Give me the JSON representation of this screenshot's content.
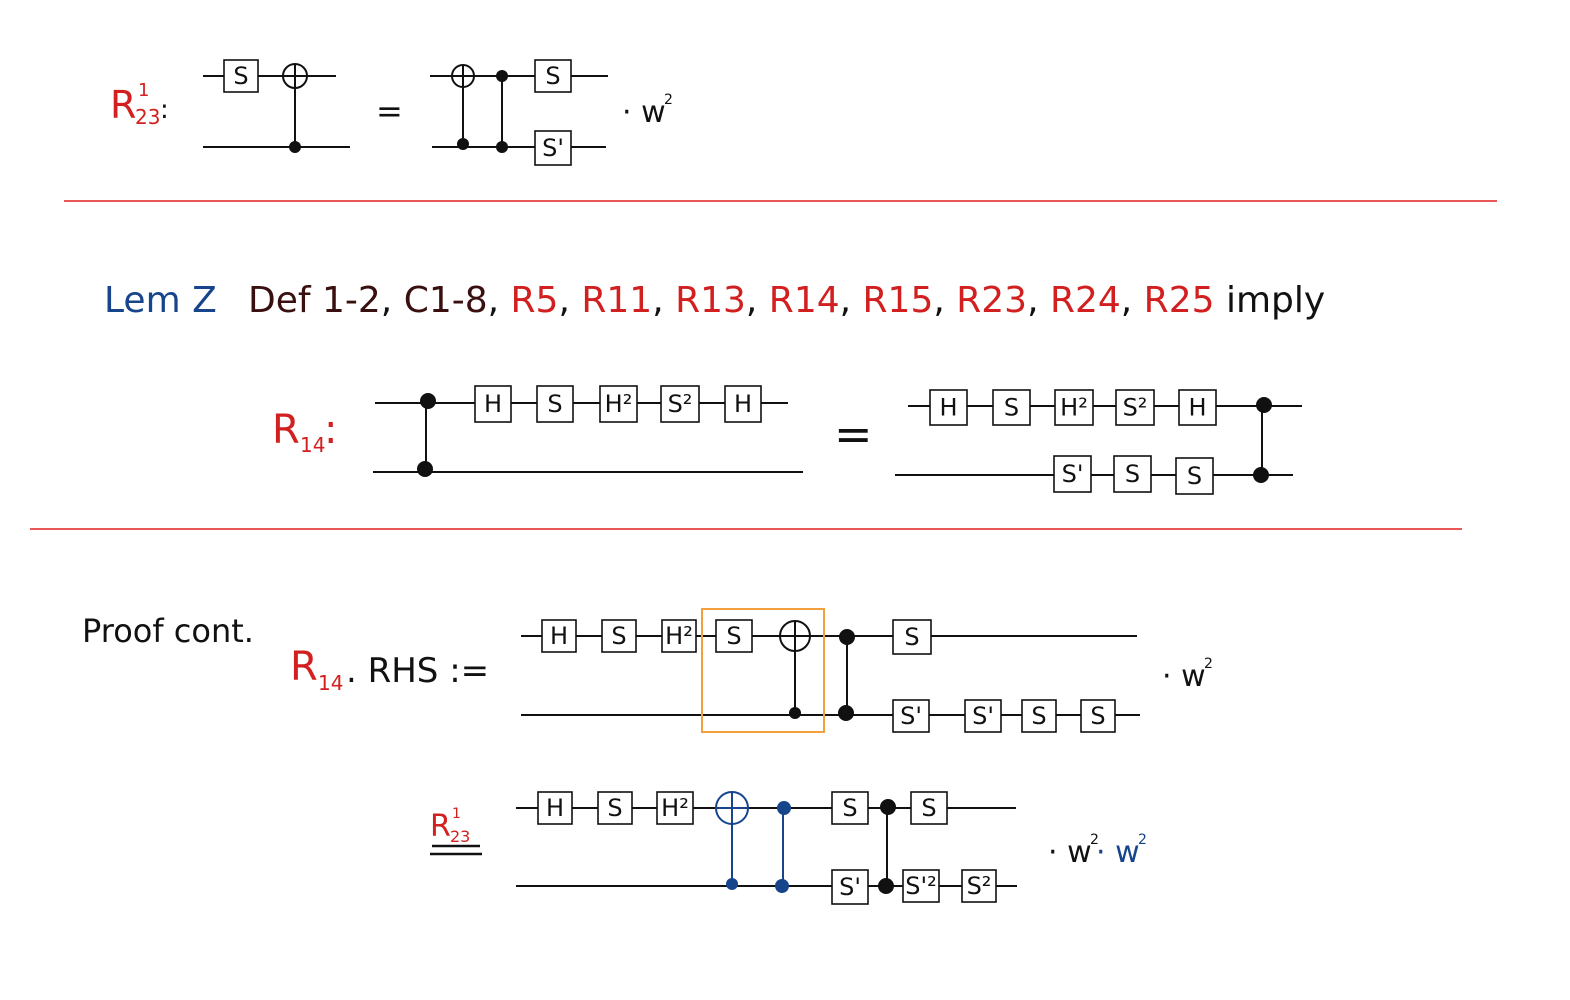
{
  "colors": {
    "red": "#d21f1f",
    "blue": "#16458c",
    "dark_red": "#3a0f0f",
    "black": "#111111",
    "orange_box": "#f2a03d",
    "separator": "#e02020"
  },
  "section1": {
    "label_main": "R",
    "label_sub": "23",
    "label_sup": "1",
    "label_colon": ":",
    "equals": "=",
    "phase": "· w",
    "phase_sup": "2",
    "lhs_gates": [
      "S"
    ],
    "rhs_gates": [
      "S",
      "S'"
    ]
  },
  "lemma": {
    "title": "Lem Z",
    "items": [
      {
        "text": "Def 1-2",
        "color": "dark"
      },
      {
        "text": ",",
        "color": "black"
      },
      {
        "text": "C1-8",
        "color": "dark"
      },
      {
        "text": ",",
        "color": "black"
      },
      {
        "text": "R5",
        "color": "red"
      },
      {
        "text": ",",
        "color": "black"
      },
      {
        "text": "R11",
        "color": "red"
      },
      {
        "text": ",",
        "color": "black"
      },
      {
        "text": "R13",
        "color": "red"
      },
      {
        "text": ",",
        "color": "black"
      },
      {
        "text": "R14",
        "color": "red"
      },
      {
        "text": ",",
        "color": "black"
      },
      {
        "text": "R15",
        "color": "red"
      },
      {
        "text": ",",
        "color": "black"
      },
      {
        "text": "R23",
        "color": "red"
      },
      {
        "text": ",",
        "color": "black"
      },
      {
        "text": "R24",
        "color": "red"
      },
      {
        "text": ",",
        "color": "black"
      },
      {
        "text": "R25",
        "color": "red"
      },
      {
        "text": "imply",
        "color": "black"
      }
    ],
    "r14_label": "R",
    "r14_sub": "14",
    "r14_colon": ":",
    "equals": "=",
    "lhs_gates": [
      "H",
      "S",
      "H²",
      "S²",
      "H"
    ],
    "rhs_top_gates": [
      "H",
      "S",
      "H²",
      "S²",
      "H"
    ],
    "rhs_bottom_gates": [
      "S'",
      "S",
      "S"
    ]
  },
  "proof": {
    "title": "Proof cont.",
    "rhs_label_main": "R",
    "rhs_label_sub": "14",
    "rhs_label_rest": ". RHS :=",
    "row1_top_gates": [
      "H",
      "S",
      "H²",
      "S",
      "S"
    ],
    "row1_bottom_gates": [
      "S'",
      "S'",
      "S",
      "S"
    ],
    "row1_phase": "· w",
    "row1_phase_sup": "2",
    "step_label_main": "R",
    "step_label_sub": "23",
    "step_label_sup": "1",
    "row2_top_gates": [
      "H",
      "S",
      "H²",
      "S",
      "S"
    ],
    "row2_bottom_gates": [
      "S'",
      "S'²",
      "S²"
    ],
    "row2_phase_a": "· w",
    "row2_phase_a_sup": "2",
    "row2_phase_b": "· w",
    "row2_phase_b_sup": "2"
  }
}
